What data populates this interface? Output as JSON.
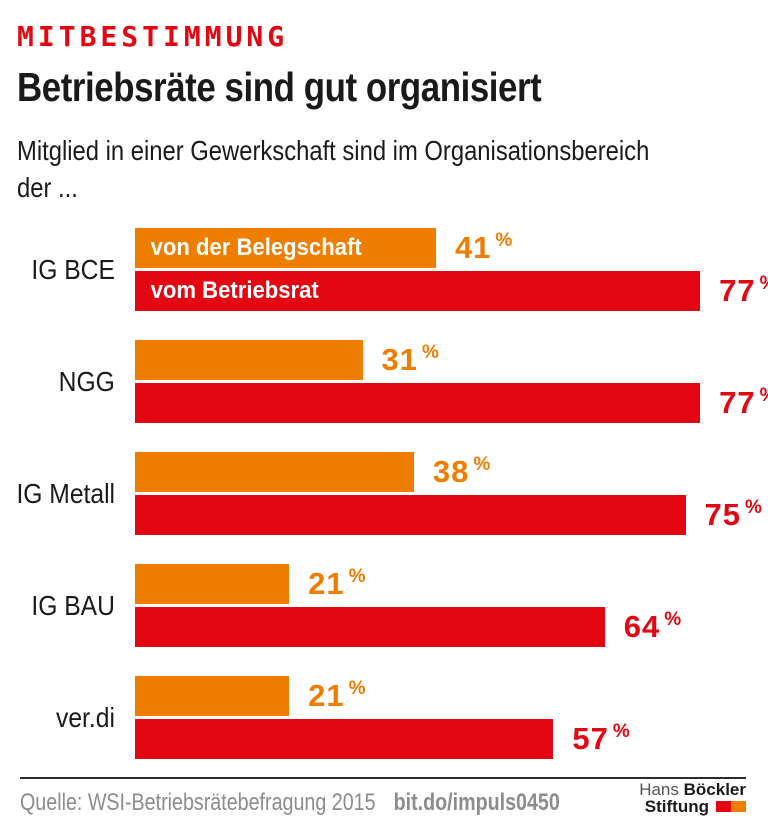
{
  "page": {
    "kicker": "MITBESTIMMUNG",
    "title": "Betriebsräte sind gut organisiert",
    "subtitle_line1": "Mitglied in einer Gewerkschaft sind im Organisationsbereich",
    "subtitle_line2": "der ..."
  },
  "chart_data": {
    "type": "bar",
    "orientation": "horizontal",
    "unit": "%",
    "xlim": [
      0,
      100
    ],
    "grid": false,
    "legend_position": "inside-first-group-bars",
    "categories": [
      "IG BCE",
      "NGG",
      "IG Metall",
      "IG BAU",
      "ver.di"
    ],
    "series": [
      {
        "name": "von der Belegschaft",
        "color": "#ef7d00",
        "values": [
          41,
          31,
          38,
          21,
          21
        ]
      },
      {
        "name": "vom Betriebsrat",
        "color": "#e30613",
        "values": [
          77,
          77,
          75,
          64,
          57
        ]
      }
    ],
    "rows": [
      {
        "category": "IG BCE",
        "belegschaft": 41,
        "betriebsrat": 77
      },
      {
        "category": "NGG",
        "belegschaft": 31,
        "betriebsrat": 77
      },
      {
        "category": "IG Metall",
        "belegschaft": 38,
        "betriebsrat": 75
      },
      {
        "category": "IG BAU",
        "belegschaft": 21,
        "betriebsrat": 64
      },
      {
        "category": "ver.di",
        "belegschaft": 21,
        "betriebsrat": 57
      }
    ]
  },
  "labels": {
    "percent": "%"
  },
  "footer": {
    "source": "Quelle: WSI-Betriebsrätebefragung 2015",
    "link": "bit.do/impuls0450",
    "logo_line1_regular": "Hans",
    "logo_line1_bold": "Böckler",
    "logo_line2_bold": "Stiftung"
  },
  "colors": {
    "accent_red": "#e30613",
    "accent_orange": "#ef7d00",
    "text_black": "#1a1a1a",
    "footer_gray": "#8c8c8c"
  }
}
